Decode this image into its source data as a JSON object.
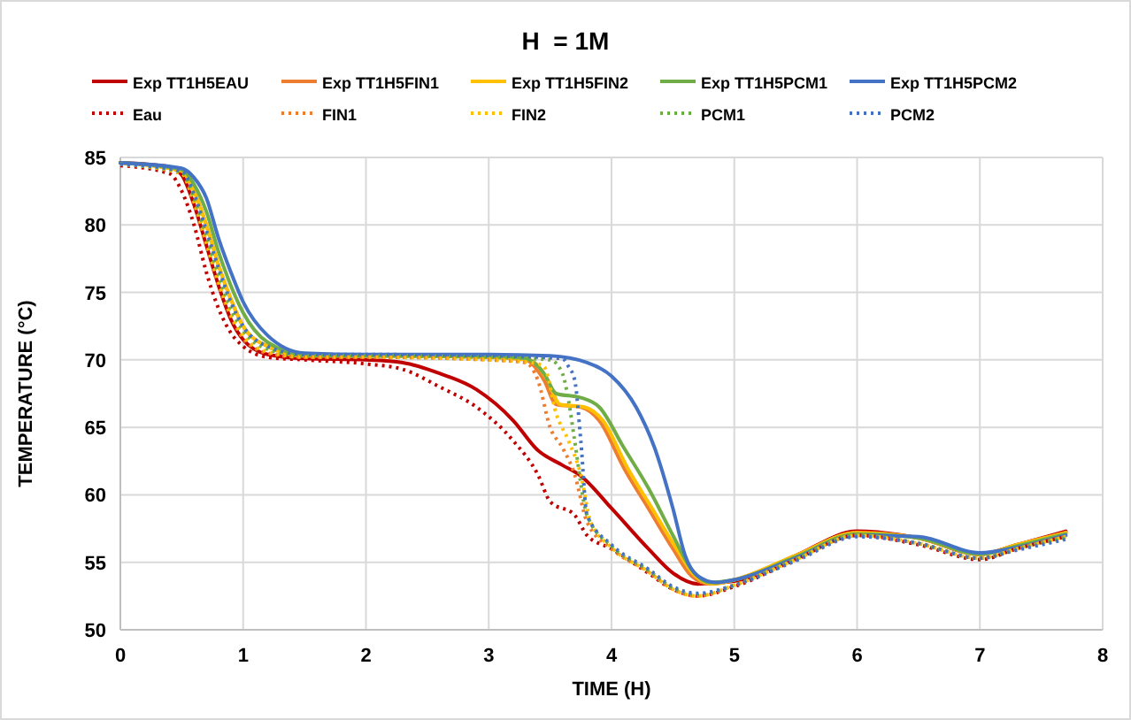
{
  "chart_data": {
    "type": "line",
    "title": "H  = 1M",
    "xlabel": "TIME (H)",
    "ylabel": "TEMPERATURE (°C)",
    "xlim": [
      0,
      8
    ],
    "ylim": [
      50,
      85
    ],
    "xticks": [
      0,
      1,
      2,
      3,
      4,
      5,
      6,
      7,
      8
    ],
    "yticks": [
      50,
      55,
      60,
      65,
      70,
      75,
      80,
      85
    ],
    "grid": true,
    "legend": "top",
    "series": [
      {
        "name": "Exp TT1H5EAU",
        "color": "#c00000",
        "line_style": "solid",
        "x": [
          0,
          0.4,
          0.5,
          0.6,
          0.7,
          0.8,
          0.9,
          1,
          1.2,
          1.5,
          2,
          2.3,
          2.6,
          2.9,
          3.2,
          3.4,
          3.6,
          3.75,
          4,
          4.3,
          4.5,
          4.7,
          5,
          5.5,
          6,
          6.5,
          7,
          7.3,
          7.7
        ],
        "values": [
          84.6,
          84.3,
          83.7,
          81.5,
          78.5,
          75.5,
          73,
          71.5,
          70.4,
          70.1,
          70,
          69.8,
          69,
          67.8,
          65.5,
          63.3,
          62.2,
          61.4,
          59,
          56,
          54.2,
          53.4,
          53.6,
          55.5,
          57.3,
          56.8,
          55.6,
          56.3,
          57.3
        ]
      },
      {
        "name": "Exp TT1H5FIN1",
        "color": "#ed7d31",
        "line_style": "solid",
        "x": [
          0,
          0.5,
          0.6,
          0.7,
          0.8,
          0.9,
          1,
          1.2,
          1.5,
          2,
          3,
          3.3,
          3.45,
          3.55,
          3.75,
          3.9,
          4.1,
          4.3,
          4.5,
          4.65,
          4.8,
          5,
          5.5,
          6,
          6.5,
          7,
          7.3,
          7.7
        ],
        "values": [
          84.6,
          84,
          82.5,
          80,
          77,
          74.5,
          72.5,
          71,
          70.3,
          70.3,
          70.2,
          70,
          68.5,
          66.7,
          66.5,
          65.5,
          62,
          59,
          56,
          54,
          53.4,
          53.7,
          55.5,
          57.2,
          56.8,
          55.6,
          56.3,
          57.2
        ]
      },
      {
        "name": "Exp TT1H5FIN2",
        "color": "#ffc000",
        "line_style": "solid",
        "x": [
          0,
          0.5,
          0.6,
          0.7,
          0.8,
          0.9,
          1,
          1.2,
          1.5,
          2,
          3,
          3.33,
          3.48,
          3.58,
          3.78,
          3.93,
          4.13,
          4.33,
          4.53,
          4.68,
          4.83,
          5,
          5.5,
          6,
          6.5,
          7,
          7.3,
          7.7
        ],
        "values": [
          84.6,
          84,
          82.5,
          80,
          77,
          74.5,
          72.5,
          71,
          70.3,
          70.3,
          70.2,
          70,
          68.5,
          66.7,
          66.5,
          65.5,
          62,
          59,
          56,
          54,
          53.4,
          53.7,
          55.5,
          57.2,
          56.8,
          55.6,
          56.3,
          57.2
        ]
      },
      {
        "name": "Exp TT1H5PCM1",
        "color": "#70ad47",
        "line_style": "solid",
        "x": [
          0,
          0.5,
          0.6,
          0.7,
          0.8,
          0.9,
          1,
          1.2,
          1.5,
          2,
          3,
          3.3,
          3.45,
          3.55,
          3.75,
          3.9,
          4.1,
          4.3,
          4.5,
          4.65,
          4.8,
          5,
          5.5,
          6,
          6.5,
          7,
          7.3,
          7.7
        ],
        "values": [
          84.6,
          84.1,
          83,
          81,
          78,
          75.5,
          73.5,
          71.3,
          70.4,
          70.3,
          70.3,
          70.1,
          69,
          67.5,
          67.2,
          66.5,
          63.5,
          60.5,
          57,
          54.5,
          53.5,
          53.7,
          55.4,
          57.1,
          56.8,
          55.6,
          56.2,
          57.1
        ]
      },
      {
        "name": "Exp TT1H5PCM2",
        "color": "#4472c4",
        "line_style": "solid",
        "x": [
          0,
          0.5,
          0.6,
          0.7,
          0.8,
          0.9,
          1,
          1.2,
          1.5,
          2,
          3,
          3.5,
          3.8,
          4,
          4.2,
          4.35,
          4.5,
          4.6,
          4.7,
          4.85,
          5,
          5.5,
          6,
          6.5,
          7,
          7.3,
          7.7
        ],
        "values": [
          84.6,
          84.2,
          83.5,
          82,
          79,
          76.5,
          74.3,
          71.8,
          70.5,
          70.4,
          70.4,
          70.3,
          69.8,
          68.8,
          66.5,
          63.5,
          59,
          55.5,
          54,
          53.5,
          53.7,
          55.3,
          57,
          56.9,
          55.7,
          56.1,
          57
        ]
      },
      {
        "name": "Eau",
        "color": "#c00000",
        "line_style": "dotted",
        "x": [
          0,
          0.4,
          0.5,
          0.6,
          0.7,
          0.8,
          0.9,
          1,
          1.2,
          1.5,
          2,
          2.3,
          2.6,
          2.9,
          3.2,
          3.4,
          3.5,
          3.7,
          3.8,
          4,
          4.3,
          4.5,
          4.7,
          5,
          5.5,
          6,
          6.5,
          7,
          7.3,
          7.7
        ],
        "values": [
          84.4,
          83.8,
          82.5,
          80,
          76.5,
          73.8,
          72,
          71,
          70.2,
          70,
          69.7,
          69.3,
          68,
          66.5,
          64,
          61.5,
          59.5,
          58.5,
          57,
          56,
          54.2,
          53,
          52.5,
          53.2,
          55.2,
          57,
          56.3,
          55.2,
          56,
          56.9
        ]
      },
      {
        "name": "FIN1",
        "color": "#ed7d31",
        "line_style": "dotted",
        "x": [
          0,
          0.5,
          0.6,
          0.7,
          0.8,
          0.9,
          1,
          1.2,
          1.5,
          2,
          3,
          3.3,
          3.4,
          3.5,
          3.6,
          3.7,
          3.8,
          4,
          4.3,
          4.5,
          4.7,
          5,
          5.5,
          6,
          6.5,
          7,
          7.3,
          7.7
        ],
        "values": [
          84.5,
          83.8,
          81.5,
          78.5,
          75.5,
          73.2,
          71.6,
          70.5,
          70.2,
          70.2,
          70,
          69.8,
          68.5,
          65,
          63.5,
          61.5,
          58,
          56,
          54.3,
          53,
          52.5,
          53.3,
          55.2,
          57,
          56.4,
          55.3,
          56,
          56.9
        ]
      },
      {
        "name": "FIN2",
        "color": "#ffc000",
        "line_style": "dotted",
        "x": [
          0,
          0.5,
          0.6,
          0.7,
          0.8,
          0.9,
          1,
          1.2,
          1.5,
          2,
          3,
          3.35,
          3.45,
          3.55,
          3.65,
          3.75,
          3.83,
          4,
          4.3,
          4.5,
          4.7,
          5,
          5.5,
          6,
          6.5,
          7,
          7.3,
          7.7
        ],
        "values": [
          84.5,
          83.8,
          81.8,
          78.8,
          75.8,
          73.4,
          71.8,
          70.6,
          70.2,
          70.2,
          70,
          69.8,
          69.5,
          66,
          64,
          61.5,
          58,
          56.1,
          54.3,
          53,
          52.5,
          53.3,
          55.2,
          57,
          56.4,
          55.3,
          56,
          56.9
        ]
      },
      {
        "name": "PCM1",
        "color": "#70ad47",
        "line_style": "dotted",
        "x": [
          0,
          0.5,
          0.6,
          0.7,
          0.8,
          0.9,
          1,
          1.2,
          1.5,
          2,
          3,
          3.5,
          3.6,
          3.65,
          3.7,
          3.8,
          4,
          4.3,
          4.5,
          4.7,
          5,
          5.5,
          6,
          6.5,
          7,
          7.3,
          7.7
        ],
        "values": [
          84.5,
          83.9,
          82,
          79.2,
          76.3,
          73.8,
          72.2,
          70.8,
          70.3,
          70.3,
          70.2,
          70,
          69,
          67,
          64,
          58.5,
          56.2,
          54.4,
          53.1,
          52.6,
          53.3,
          55.2,
          57,
          56.4,
          55.3,
          56,
          56.8
        ]
      },
      {
        "name": "PCM2",
        "color": "#4472c4",
        "line_style": "dotted",
        "x": [
          0,
          0.5,
          0.6,
          0.7,
          0.8,
          0.9,
          1,
          1.2,
          1.5,
          2,
          3,
          3.6,
          3.65,
          3.7,
          3.75,
          3.8,
          4,
          4.3,
          4.5,
          4.7,
          5,
          5.5,
          6,
          6.5,
          7,
          7.3,
          7.7
        ],
        "values": [
          84.5,
          84,
          82.3,
          79.6,
          76.8,
          74.3,
          72.5,
          71,
          70.4,
          70.4,
          70.3,
          70.1,
          69.5,
          68.5,
          64,
          58.5,
          56.3,
          54.5,
          53.2,
          52.7,
          53.3,
          55.1,
          56.9,
          56.4,
          55.3,
          55.9,
          56.7
        ]
      }
    ]
  }
}
